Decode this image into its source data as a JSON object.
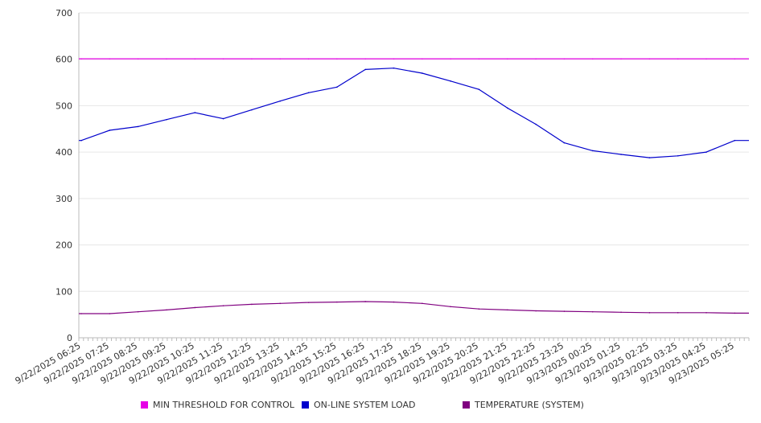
{
  "colors": {
    "threshold": "#e600e6",
    "load": "#0000cc",
    "temperature": "#800080",
    "grid": "#e6e6e6",
    "axis": "#bbbbbb"
  },
  "legend": [
    {
      "label": "MIN THRESHOLD FOR CONTROL",
      "color": "#e600e6"
    },
    {
      "label": "ON-LINE SYSTEM LOAD",
      "color": "#0000cc"
    },
    {
      "label": "TEMPERATURE (SYSTEM)",
      "color": "#800080"
    }
  ],
  "chart_data": {
    "type": "line",
    "title": "",
    "xlabel": "",
    "ylabel": "",
    "ylim": [
      0,
      700
    ],
    "yticks": [
      0,
      100,
      200,
      300,
      400,
      500,
      600,
      700
    ],
    "grid": true,
    "legend_position": "bottom",
    "x": [
      "9/22/2025 06:25",
      "9/22/2025 07:25",
      "9/22/2025 08:25",
      "9/22/2025 09:25",
      "9/22/2025 10:25",
      "9/22/2025 11:25",
      "9/22/2025 12:25",
      "9/22/2025 13:25",
      "9/22/2025 14:25",
      "9/22/2025 15:25",
      "9/22/2025 16:25",
      "9/22/2025 17:25",
      "9/22/2025 18:25",
      "9/22/2025 19:25",
      "9/22/2025 20:25",
      "9/22/2025 21:25",
      "9/22/2025 22:25",
      "9/22/2025 23:25",
      "9/23/2025 00:25",
      "9/23/2025 01:25",
      "9/23/2025 02:25",
      "9/23/2025 03:25",
      "9/23/2025 04:25",
      "9/23/2025 05:25"
    ],
    "series": [
      {
        "name": "MIN THRESHOLD FOR CONTROL",
        "color": "#e600e6",
        "values": [
          601,
          601,
          601,
          601,
          601,
          601,
          601,
          601,
          601,
          601,
          601,
          601,
          601,
          601,
          601,
          601,
          601,
          601,
          601,
          601,
          601,
          601,
          601,
          601
        ]
      },
      {
        "name": "ON-LINE SYSTEM LOAD",
        "color": "#0000cc",
        "values": [
          425,
          447,
          455,
          470,
          485,
          472,
          491,
          510,
          528,
          540,
          578,
          581,
          570,
          553,
          535,
          495,
          460,
          420,
          403,
          395,
          388,
          392,
          400,
          425
        ]
      },
      {
        "name": "TEMPERATURE (SYSTEM)",
        "color": "#800080",
        "values": [
          52,
          52,
          56,
          60,
          65,
          69,
          72,
          74,
          76,
          77,
          78,
          77,
          74,
          67,
          62,
          60,
          58,
          57,
          56,
          55,
          54,
          54,
          54,
          53
        ]
      }
    ]
  }
}
